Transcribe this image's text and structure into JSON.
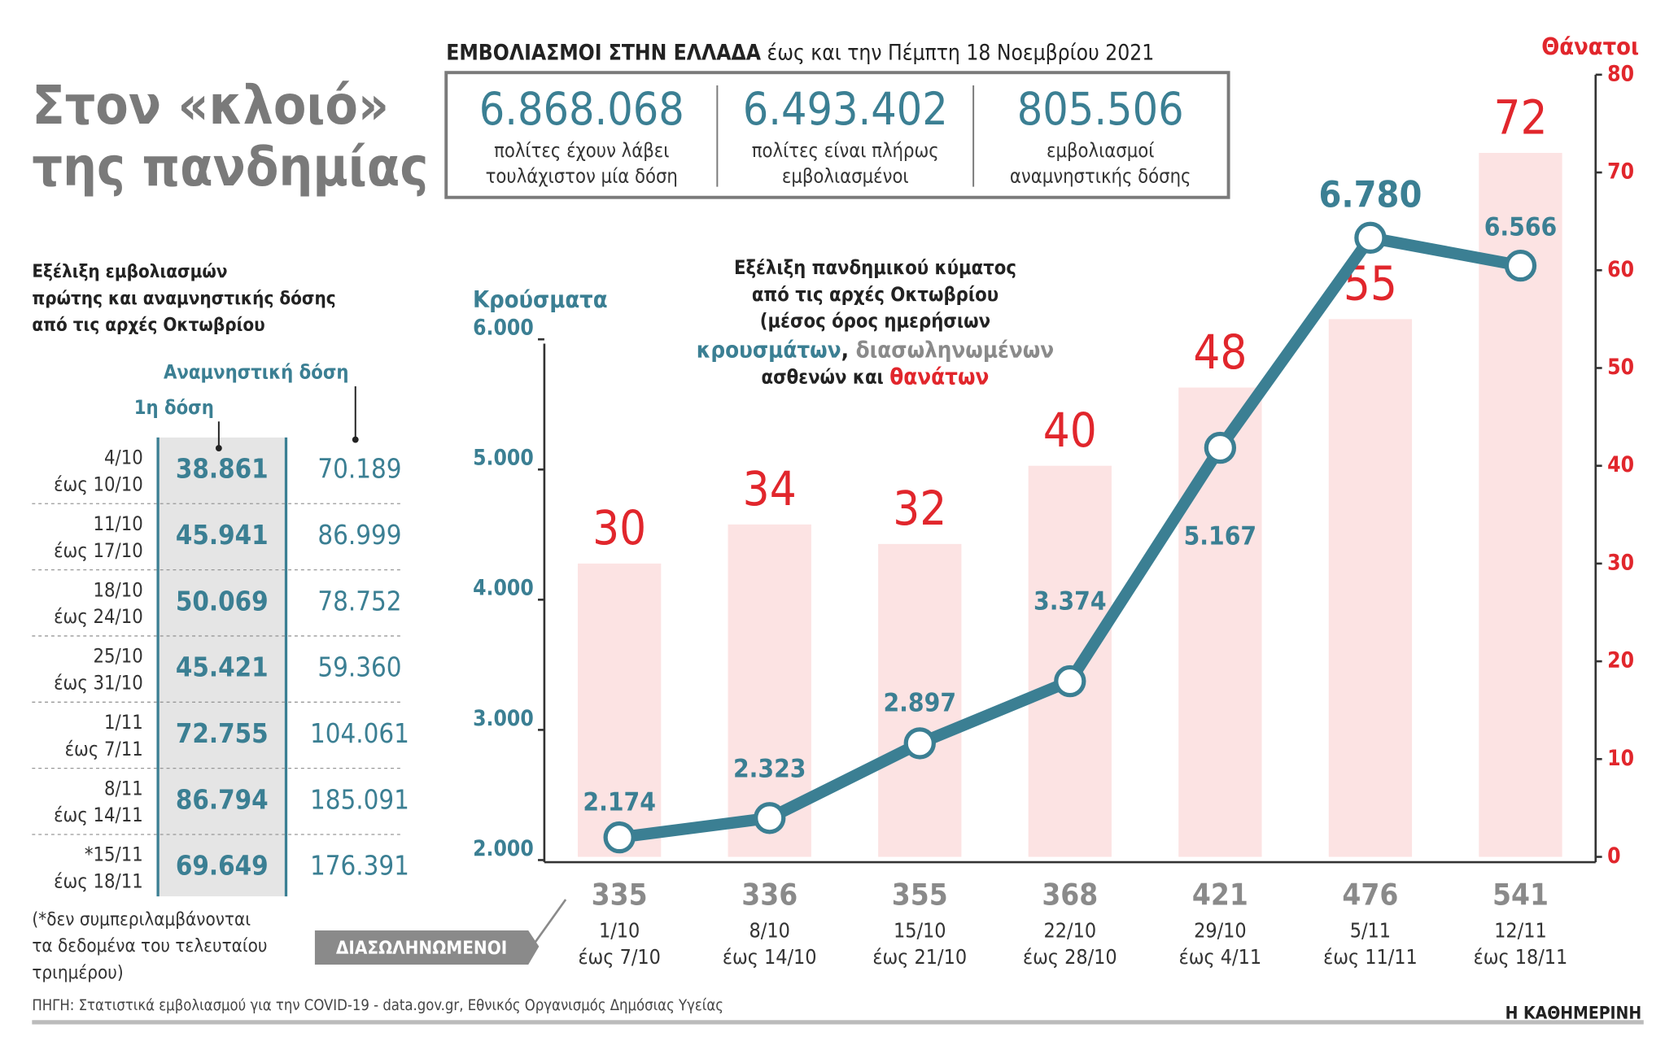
{
  "title": [
    "Στον «κλοιό»",
    "της πανδημίας"
  ],
  "summary": {
    "heading": "ΕΜΒΟΛΙΑΣΜΟΙ ΣΤΗΝ ΕΛΛΑΔΑ",
    "date": " έως και την Πέμπτη 18 Νοεμβρίου 2021",
    "stats": [
      {
        "value": "6.868.068",
        "text": [
          "πολίτες έχουν λάβει",
          "τουλάχιστον μία δόση"
        ]
      },
      {
        "value": "6.493.402",
        "text": [
          "πολίτες είναι πλήρως",
          "εμβολιασμένοι"
        ]
      },
      {
        "value": "805.506",
        "text": [
          "εμβολιασμοί",
          "αναμνηστικής δόσης"
        ]
      }
    ]
  },
  "vaccinations": {
    "subtitle": [
      "Εξέλιξη εμβολιασμών",
      "πρώτης και αναμνηστικής δόσης",
      "από τις αρχές Οκτωβρίου"
    ],
    "columns": [
      "1η δόση",
      "Αναμνηστική δόση"
    ],
    "rows": [
      [
        [
          "4/10",
          "έως 10/10"
        ],
        "38.861",
        "70.189"
      ],
      [
        [
          "11/10",
          "έως 17/10"
        ],
        "45.941",
        "86.999"
      ],
      [
        [
          "18/10",
          "έως 24/10"
        ],
        "50.069",
        "78.752"
      ],
      [
        [
          "25/10",
          "έως 31/10"
        ],
        "45.421",
        "59.360"
      ],
      [
        [
          "1/11",
          "έως 7/11"
        ],
        "72.755",
        "104.061"
      ],
      [
        [
          "8/11",
          "έως 14/11"
        ],
        "86.794",
        "185.091"
      ],
      [
        [
          "*15/11",
          "έως 18/11"
        ],
        "69.649",
        "176.391"
      ]
    ],
    "note": [
      "(*δεν συμπεριλαμβάνονται",
      "τα δεδομένα του τελευταίου",
      "τριημέρου)"
    ]
  },
  "chart_data": {
    "type": "bar-line",
    "subtitle": [
      "Εξέλιξη πανδημικού κύματος",
      "από τις αρχές Οκτωβρίου",
      "(μέσος όρος ημερήσιων",
      [
        "κρουσμάτων",
        ", ",
        "διασωληνωμένων"
      ],
      [
        "ασθενών και ",
        "θανάτων"
      ]
    ],
    "ylabel": "Κρούσματα",
    "y2label": "Θάνατοι",
    "categories": [
      "1/10 έως 7/10",
      "8/10 έως 14/10",
      "15/10 έως 21/10",
      "22/10 έως 28/10",
      "29/10 έως 4/11",
      "5/11 έως 11/11",
      "12/11 έως 18/11"
    ],
    "ylim": [
      2000,
      6000
    ],
    "yticks": [
      {
        "value": 2000,
        "label": "2.000"
      },
      {
        "value": 3000,
        "label": "3.000"
      },
      {
        "value": 4000,
        "label": "4.000"
      },
      {
        "value": 5000,
        "label": "5.000"
      },
      {
        "value": 6000,
        "label": "6.000"
      }
    ],
    "y2lim": [
      0,
      80
    ],
    "y2ticks": [
      0,
      10,
      20,
      30,
      40,
      50,
      60,
      70,
      80
    ],
    "series": [
      {
        "name": "Θάνατοι",
        "type": "bar",
        "axis": "y2",
        "color": "#fce3e3",
        "label_color": "#e1262c",
        "values": [
          30,
          34,
          32,
          40,
          48,
          55,
          72
        ]
      },
      {
        "name": "Κρούσματα",
        "type": "line",
        "color": "#3b7f93",
        "values": [
          2174,
          2323,
          2897,
          3374,
          5167,
          6780,
          6566
        ],
        "value_labels": [
          "2.174",
          "2.323",
          "2.897",
          "3.374",
          "5.167",
          "6.780",
          "6.566"
        ]
      },
      {
        "name": "ΔΙΑΣΩΛΗΝΩΜΕΝΟΙ",
        "type": "text",
        "color": "#8a8a8a",
        "values": [
          335,
          336,
          355,
          368,
          421,
          476,
          541
        ]
      }
    ]
  },
  "source": "ΠΗΓΗ: Στατιστικά εμβολιασμού για την COVID-19 - data.gov.gr, Εθνικός Οργανισμός Δημόσιας Υγείας",
  "brand": "Η ΚΑΘΗΜΕΡΙΝΗ"
}
